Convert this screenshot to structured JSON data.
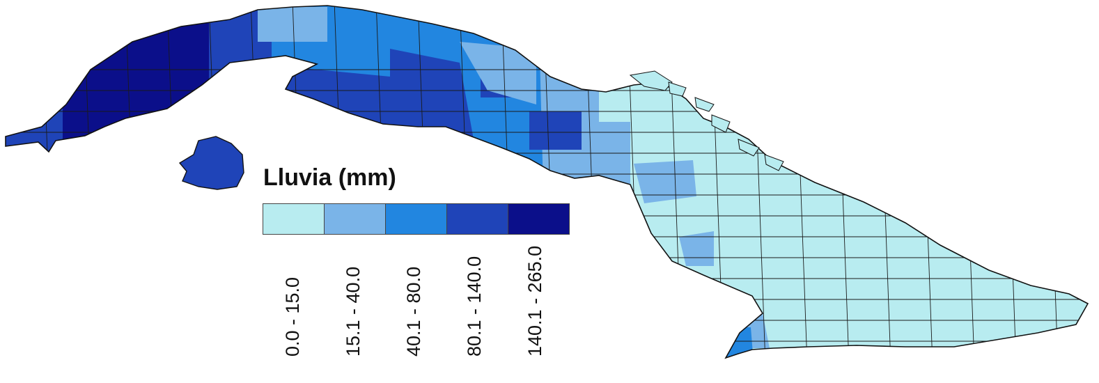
{
  "legend": {
    "title": "Lluvia (mm)",
    "classes": [
      {
        "label": "0.0 - 15.0",
        "color": "#b8ecf0"
      },
      {
        "label": "15.1 - 40.0",
        "color": "#7ab4e8"
      },
      {
        "label": "40.1 - 80.0",
        "color": "#2286e0"
      },
      {
        "label": "80.1 - 140.0",
        "color": "#1f44b8"
      },
      {
        "label": "140.1 - 265.0",
        "color": "#0b0f8a"
      }
    ]
  }
}
